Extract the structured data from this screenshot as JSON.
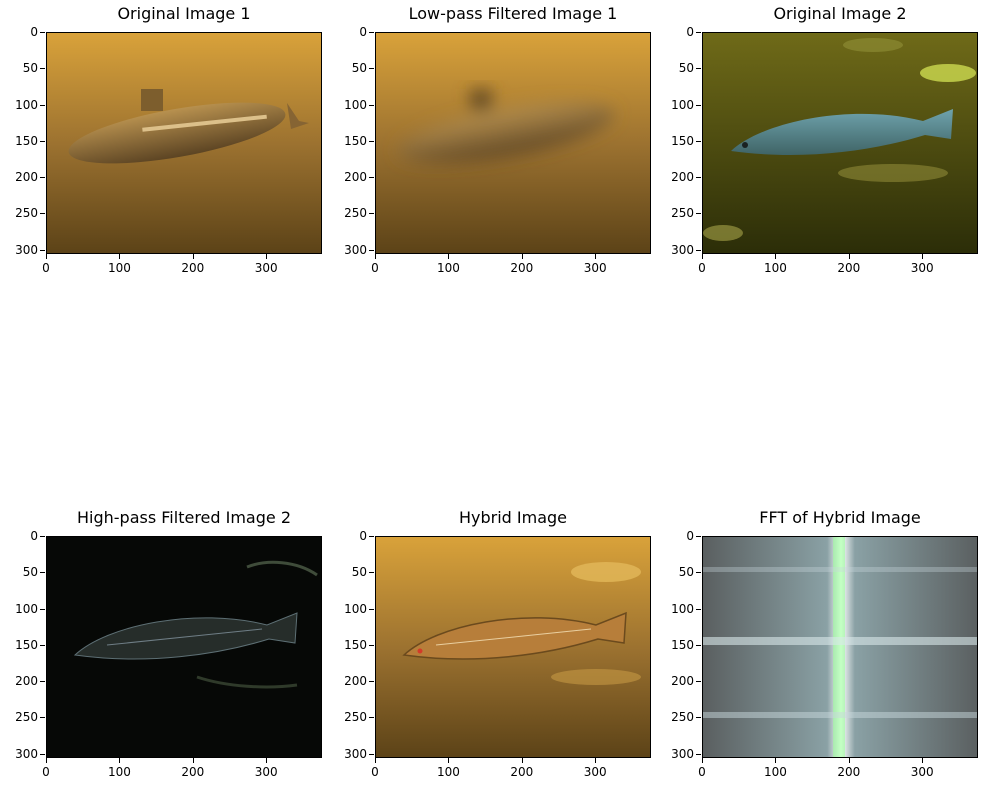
{
  "panels": [
    {
      "title": "Original Image 1",
      "image": "submarine underwater amber"
    },
    {
      "title": "Low-pass Filtered Image 1",
      "image": "blurred submarine amber"
    },
    {
      "title": "Original Image 2",
      "image": "cod fish underwater green"
    },
    {
      "title": "High-pass Filtered Image 2",
      "image": "edge detail fish dark"
    },
    {
      "title": "Hybrid Image",
      "image": "fish over amber background"
    },
    {
      "title": "FFT of Hybrid Image",
      "image": "frequency spectrum noise"
    }
  ],
  "axes": {
    "x_ticks": [
      "0",
      "100",
      "200",
      "300"
    ],
    "y_ticks": [
      "0",
      "50",
      "100",
      "150",
      "200",
      "250",
      "300"
    ],
    "x_range": [
      0,
      376
    ],
    "y_range": [
      0,
      306
    ]
  }
}
